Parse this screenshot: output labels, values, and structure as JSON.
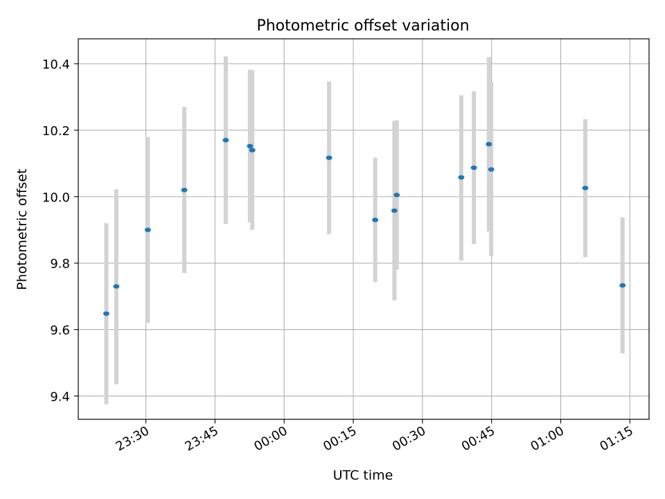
{
  "chart_data": {
    "type": "scatter",
    "title": "Photometric offset variation",
    "xlabel": "UTC time",
    "ylabel": "Photometric offset",
    "x_tick_labels": [
      "23:30",
      "23:45",
      "00:00",
      "00:15",
      "00:30",
      "00:45",
      "01:00",
      "01:15"
    ],
    "x_ticks": [
      "23:30",
      "23:45",
      "00:00",
      "00:15",
      "00:30",
      "00:45",
      "01:00",
      "01:15"
    ],
    "x_range": [
      "23:15:20",
      "01:19:10"
    ],
    "y_ticks": [
      9.4,
      9.6,
      9.8,
      10.0,
      10.2,
      10.4
    ],
    "y_tick_labels": [
      "9.4",
      "9.6",
      "9.8",
      "10.0",
      "10.2",
      "10.4"
    ],
    "ylim": [
      9.33,
      10.475
    ],
    "grid": true,
    "colors": {
      "points": "#1f77b4",
      "error_bars": "#d3d3d3"
    },
    "points": [
      {
        "x": "23:21:25",
        "y": 9.648,
        "y_low": 9.375,
        "y_high": 9.92
      },
      {
        "x": "23:23:35",
        "y": 9.73,
        "y_low": 9.435,
        "y_high": 10.022
      },
      {
        "x": "23:30:25",
        "y": 9.9,
        "y_low": 9.62,
        "y_high": 10.18
      },
      {
        "x": "23:38:20",
        "y": 10.02,
        "y_low": 9.77,
        "y_high": 10.27
      },
      {
        "x": "23:47:20",
        "y": 10.17,
        "y_low": 9.918,
        "y_high": 10.422
      },
      {
        "x": "23:52:35",
        "y": 10.152,
        "y_low": 9.922,
        "y_high": 10.382
      },
      {
        "x": "23:53:05",
        "y": 10.14,
        "y_low": 9.9,
        "y_high": 10.38
      },
      {
        "x": "00:09:45",
        "y": 10.117,
        "y_low": 9.887,
        "y_high": 10.347
      },
      {
        "x": "00:19:45",
        "y": 9.93,
        "y_low": 9.743,
        "y_high": 10.117
      },
      {
        "x": "00:23:55",
        "y": 9.958,
        "y_low": 9.688,
        "y_high": 10.228
      },
      {
        "x": "00:24:25",
        "y": 10.005,
        "y_low": 9.78,
        "y_high": 10.23
      },
      {
        "x": "00:38:25",
        "y": 10.058,
        "y_low": 9.807,
        "y_high": 10.305
      },
      {
        "x": "00:41:10",
        "y": 10.087,
        "y_low": 9.857,
        "y_high": 10.317
      },
      {
        "x": "00:44:25",
        "y": 10.158,
        "y_low": 9.895,
        "y_high": 10.42
      },
      {
        "x": "00:44:55",
        "y": 10.082,
        "y_low": 9.822,
        "y_high": 10.345
      },
      {
        "x": "01:05:20",
        "y": 10.026,
        "y_low": 9.818,
        "y_high": 10.233
      },
      {
        "x": "01:13:25",
        "y": 9.733,
        "y_low": 9.528,
        "y_high": 9.938
      }
    ]
  }
}
